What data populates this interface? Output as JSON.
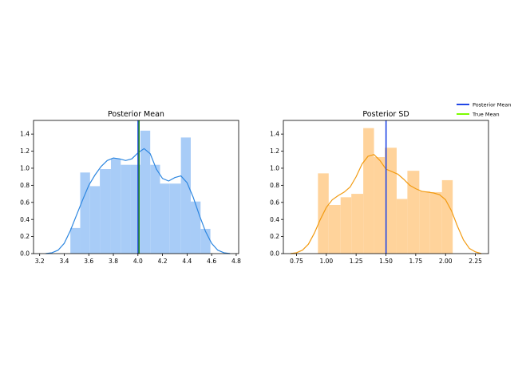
{
  "chart_data": [
    {
      "type": "histogram",
      "title": "Posterior Mean",
      "xlabel": "",
      "ylabel": "",
      "xlim": [
        3.15,
        4.82
      ],
      "ylim": [
        0,
        1.56
      ],
      "xticks": [
        "3.2",
        "3.4",
        "3.6",
        "3.8",
        "4.0",
        "4.2",
        "4.4",
        "4.6",
        "4.8"
      ],
      "yticks": [
        "0.0",
        "0.2",
        "0.4",
        "0.6",
        "0.8",
        "1.0",
        "1.2",
        "1.4"
      ],
      "bar_color": "#a8ccf7",
      "kde_color": "#2c86e0",
      "bins": [
        {
          "x0": 3.45,
          "x1": 3.53,
          "value": 0.3
        },
        {
          "x0": 3.53,
          "x1": 3.61,
          "value": 0.95
        },
        {
          "x0": 3.61,
          "x1": 3.69,
          "value": 0.79
        },
        {
          "x0": 3.69,
          "x1": 3.78,
          "value": 0.99
        },
        {
          "x0": 3.78,
          "x1": 3.86,
          "value": 1.11
        },
        {
          "x0": 3.86,
          "x1": 3.94,
          "value": 1.04
        },
        {
          "x0": 3.94,
          "x1": 4.02,
          "value": 1.04
        },
        {
          "x0": 4.02,
          "x1": 4.1,
          "value": 1.44
        },
        {
          "x0": 4.1,
          "x1": 4.18,
          "value": 1.04
        },
        {
          "x0": 4.18,
          "x1": 4.26,
          "value": 0.82
        },
        {
          "x0": 4.26,
          "x1": 4.35,
          "value": 0.82
        },
        {
          "x0": 4.35,
          "x1": 4.43,
          "value": 1.36
        },
        {
          "x0": 4.43,
          "x1": 4.51,
          "value": 0.61
        },
        {
          "x0": 4.51,
          "x1": 4.59,
          "value": 0.29
        }
      ],
      "kde": {
        "x": [
          3.25,
          3.3,
          3.35,
          3.4,
          3.45,
          3.5,
          3.55,
          3.6,
          3.65,
          3.7,
          3.75,
          3.8,
          3.85,
          3.9,
          3.95,
          4.0,
          4.05,
          4.1,
          4.15,
          4.2,
          4.25,
          4.3,
          4.35,
          4.4,
          4.45,
          4.5,
          4.55,
          4.6,
          4.65,
          4.7,
          4.75
        ],
        "y": [
          0.0,
          0.01,
          0.04,
          0.12,
          0.27,
          0.45,
          0.63,
          0.8,
          0.92,
          1.02,
          1.09,
          1.12,
          1.11,
          1.09,
          1.11,
          1.18,
          1.23,
          1.17,
          0.99,
          0.88,
          0.85,
          0.89,
          0.91,
          0.83,
          0.66,
          0.45,
          0.26,
          0.12,
          0.04,
          0.01,
          0.0
        ]
      },
      "vlines": [
        {
          "label": "Posterior Mean",
          "x": 4.005,
          "color": "#2147e6"
        },
        {
          "label": "True Mean",
          "x": 4.005,
          "color": "#228b22"
        }
      ]
    },
    {
      "type": "histogram",
      "title": "Posterior SD",
      "xlabel": "",
      "ylabel": "",
      "xlim": [
        0.64,
        2.36
      ],
      "ylim": [
        0,
        1.56
      ],
      "xticks": [
        "0.75",
        "1.00",
        "1.25",
        "1.50",
        "1.75",
        "2.00",
        "2.25"
      ],
      "yticks": [
        "0.0",
        "0.2",
        "0.4",
        "0.6",
        "0.8",
        "1.0",
        "1.2",
        "1.4"
      ],
      "bar_color": "#ffd39b",
      "kde_color": "#f29b12",
      "bins": [
        {
          "x0": 0.93,
          "x1": 1.02,
          "value": 0.94
        },
        {
          "x0": 1.02,
          "x1": 1.12,
          "value": 0.57
        },
        {
          "x0": 1.12,
          "x1": 1.21,
          "value": 0.66
        },
        {
          "x0": 1.21,
          "x1": 1.31,
          "value": 0.7
        },
        {
          "x0": 1.31,
          "x1": 1.4,
          "value": 1.47
        },
        {
          "x0": 1.4,
          "x1": 1.49,
          "value": 1.13
        },
        {
          "x0": 1.49,
          "x1": 1.59,
          "value": 1.24
        },
        {
          "x0": 1.59,
          "x1": 1.68,
          "value": 0.64
        },
        {
          "x0": 1.68,
          "x1": 1.78,
          "value": 0.97
        },
        {
          "x0": 1.78,
          "x1": 1.87,
          "value": 0.73
        },
        {
          "x0": 1.87,
          "x1": 1.97,
          "value": 0.72
        },
        {
          "x0": 1.97,
          "x1": 2.06,
          "value": 0.86
        }
      ],
      "kde": {
        "x": [
          0.7,
          0.75,
          0.8,
          0.85,
          0.9,
          0.95,
          1.0,
          1.05,
          1.1,
          1.15,
          1.2,
          1.25,
          1.3,
          1.35,
          1.4,
          1.45,
          1.5,
          1.55,
          1.6,
          1.65,
          1.7,
          1.75,
          1.8,
          1.85,
          1.9,
          1.95,
          2.0,
          2.05,
          2.1,
          2.15,
          2.2,
          2.25,
          2.3
        ],
        "y": [
          0.0,
          0.01,
          0.04,
          0.11,
          0.24,
          0.4,
          0.54,
          0.63,
          0.68,
          0.72,
          0.78,
          0.9,
          1.05,
          1.14,
          1.16,
          1.09,
          0.99,
          0.96,
          0.93,
          0.87,
          0.8,
          0.76,
          0.73,
          0.72,
          0.71,
          0.69,
          0.63,
          0.5,
          0.32,
          0.16,
          0.06,
          0.02,
          0.0
        ]
      },
      "vlines": [
        {
          "label": "Posterior Mean",
          "x": 1.505,
          "color": "#2147e6"
        }
      ]
    }
  ],
  "legend": {
    "placement": "upper-right",
    "items": [
      {
        "label": "Posterior Mean",
        "color": "#2147e6"
      },
      {
        "label": "True Mean",
        "color": "#7cfc00"
      }
    ]
  }
}
